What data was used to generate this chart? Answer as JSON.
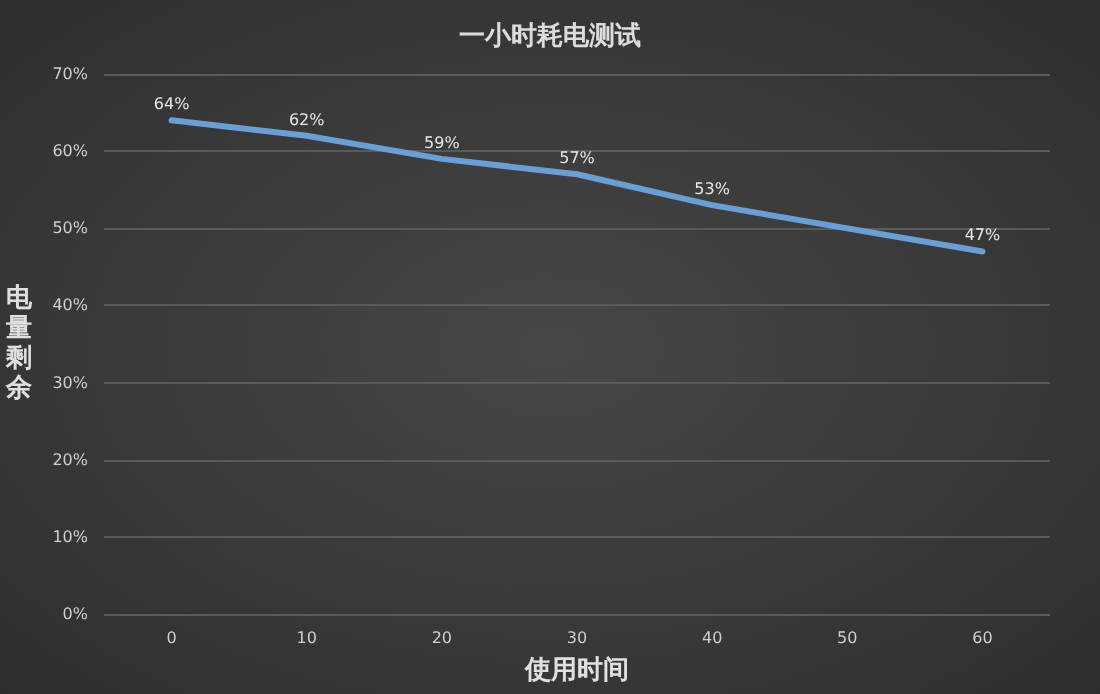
{
  "chart_data": {
    "type": "line",
    "title": "一小时耗电测试",
    "xlabel": "使用时间",
    "ylabel": "电量剩余",
    "categories": [
      "0",
      "10",
      "20",
      "30",
      "40",
      "50",
      "60"
    ],
    "series": [
      {
        "color": "#6a9fd4",
        "values": [
          64,
          62,
          59,
          57,
          53,
          null,
          47
        ],
        "value_labels": [
          "64%",
          "62%",
          "59%",
          "57%",
          "53%",
          null,
          "47%"
        ]
      }
    ],
    "ylim": [
      0,
      70
    ],
    "yticks": [
      {
        "value": 0,
        "label": "0%"
      },
      {
        "value": 10,
        "label": "10%"
      },
      {
        "value": 20,
        "label": "20%"
      },
      {
        "value": 30,
        "label": "30%"
      },
      {
        "value": 40,
        "label": "40%"
      },
      {
        "value": 50,
        "label": "50%"
      },
      {
        "value": 60,
        "label": "60%"
      },
      {
        "value": 70,
        "label": "70%"
      }
    ],
    "grid": "y",
    "marker": "none",
    "line_style": "solid"
  }
}
